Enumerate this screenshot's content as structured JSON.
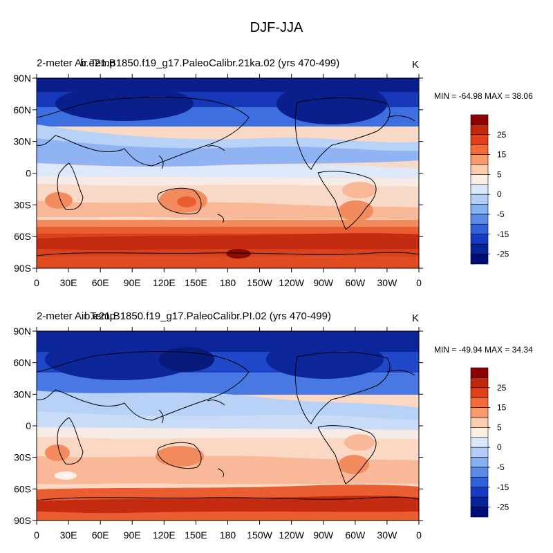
{
  "figure": {
    "title": "DJF-JJA"
  },
  "panels": [
    {
      "left_title": "2-meter Air Temp",
      "center_title": "b.e21.B1850.f19_g17.PaleoCalibr.21ka.02 (yrs 470-499)",
      "units": "K",
      "minmax": "MIN = -64.98 MAX =  38.06",
      "lat_ticks": [
        "90N",
        "60N",
        "30N",
        "0",
        "30S",
        "60S",
        "90S"
      ],
      "lon_ticks": [
        "0",
        "30E",
        "60E",
        "90E",
        "120E",
        "150E",
        "180",
        "150W",
        "120W",
        "90W",
        "60W",
        "30W",
        "0"
      ]
    },
    {
      "left_title": "2-meter Air Temp",
      "center_title": "b.e21.B1850.f19_g17.PaleoCalibr.PI.02 (yrs 470-499)",
      "units": "K",
      "minmax": "MIN = -49.94 MAX =  34.34",
      "lat_ticks": [
        "90N",
        "60N",
        "30N",
        "0",
        "30S",
        "60S",
        "90S"
      ],
      "lon_ticks": [
        "0",
        "30E",
        "60E",
        "90E",
        "120E",
        "150E",
        "180",
        "150W",
        "120W",
        "90W",
        "60W",
        "30W",
        "0"
      ]
    }
  ],
  "colorbar": {
    "labels": [
      "25",
      "15",
      "5",
      "0",
      "-5",
      "-15",
      "-25"
    ],
    "colors": [
      "#8b0000",
      "#c1270b",
      "#e2401b",
      "#f36a3b",
      "#f99a6c",
      "#fccbb0",
      "#fdeee4",
      "#dbe8fb",
      "#b3cdf8",
      "#86aff2",
      "#5a8ae6",
      "#3162db",
      "#173ac4",
      "#06239a",
      "#000c78"
    ]
  },
  "palette": {
    "navy": "#0a1e8c",
    "blue": "#1f47c7",
    "mid_blue": "#4a78e2",
    "light_blue": "#8fb3f3",
    "pale_blue": "#c8dcf8",
    "near_white": "#f7ece5",
    "pale_orange": "#fbd3bd",
    "orange": "#f6a179",
    "red_orange": "#e95d31",
    "red": "#c42b10",
    "dark_red": "#9b1404"
  }
}
